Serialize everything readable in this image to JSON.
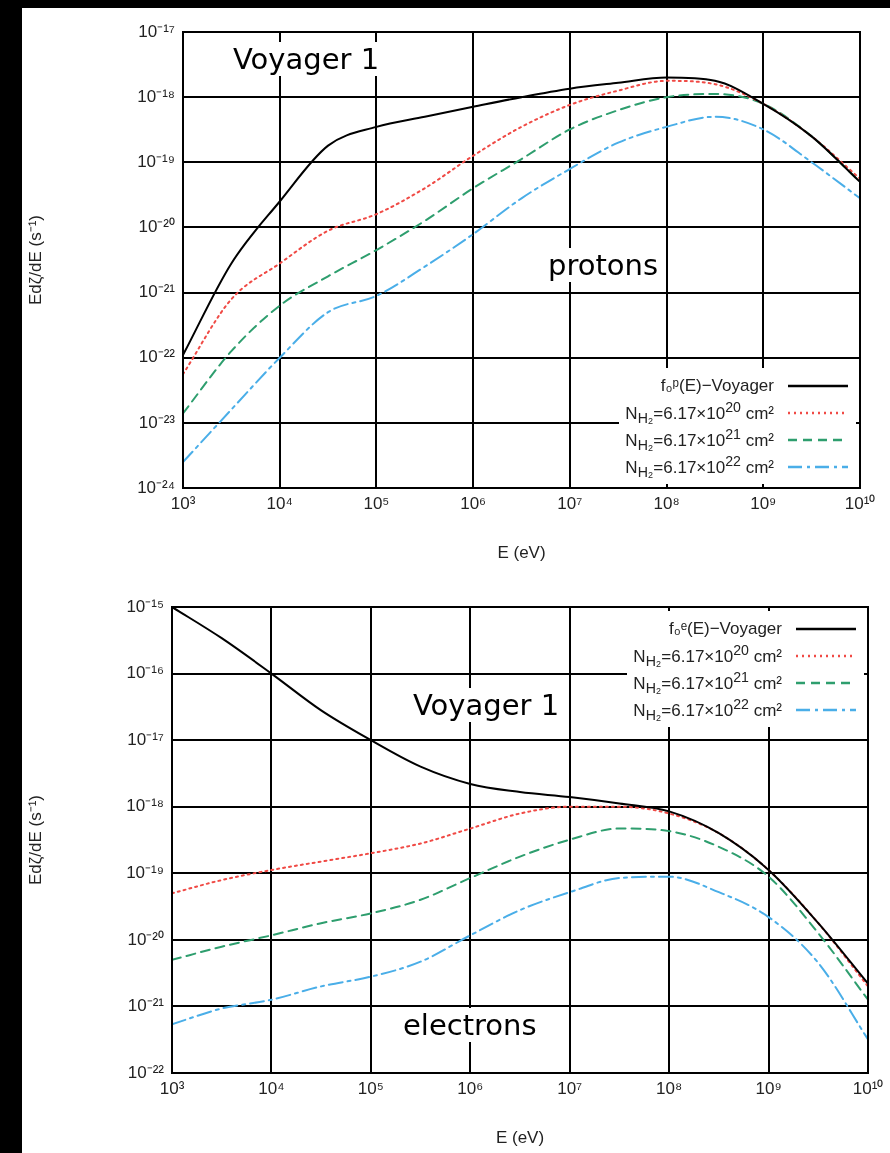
{
  "chart_data": [
    {
      "type": "line",
      "xlabel": "E (eV)",
      "ylabel": "Edζ/dE (s⁻¹)",
      "log": "xy",
      "grid": true,
      "legend": "bottom right",
      "marker": "none",
      "x": [
        1000,
        3162,
        10000,
        31623,
        100000,
        316228,
        1000000,
        3162278,
        10000000,
        31622777,
        100000000,
        316227766,
        1000000000,
        3162277660,
        10000000000
      ],
      "xlim": [
        1000,
        10000000000
      ],
      "xticks": [
        {
          "value": 1000,
          "label": "10³"
        },
        {
          "value": 10000,
          "label": "10⁴"
        },
        {
          "value": 100000,
          "label": "10⁵"
        },
        {
          "value": 1000000,
          "label": "10⁶"
        },
        {
          "value": 10000000,
          "label": "10⁷"
        },
        {
          "value": 100000000,
          "label": "10⁸"
        },
        {
          "value": 1000000000,
          "label": "10⁹"
        },
        {
          "value": 10000000000,
          "label": "10¹⁰"
        }
      ],
      "ylim": [
        1e-24,
        1e-17
      ],
      "yticks": [
        {
          "value": 1e-24,
          "label": "10⁻²⁴"
        },
        {
          "value": 1e-23,
          "label": "10⁻²³"
        },
        {
          "value": 1e-22,
          "label": "10⁻²²"
        },
        {
          "value": 1e-21,
          "label": "10⁻²¹"
        },
        {
          "value": 1e-20,
          "label": "10⁻²⁰"
        },
        {
          "value": 1e-19,
          "label": "10⁻¹⁹"
        },
        {
          "value": 1e-18,
          "label": "10⁻¹⁸"
        },
        {
          "value": 1e-17,
          "label": "10⁻¹⁷"
        }
      ],
      "annotations": [
        "Voyager 1",
        "protons"
      ],
      "series": [
        {
          "name": "f₀ᵖ(E)−Voyager",
          "color": "#000000",
          "line_style": "solid",
          "values": [
            1.1e-22,
            2.8e-21,
            2.5e-20,
            1.8e-19,
            3.5e-19,
            5e-19,
            7.1e-19,
            1e-18,
            1.35e-18,
            1.66e-18,
            2e-18,
            1.78e-18,
            7.9e-19,
            2.5e-19,
            5e-20
          ]
        },
        {
          "name": "N$_{H₂}$=6.17×10$^{20}$ cm²",
          "color": "#f04a45",
          "line_style": "dotted",
          "values": [
            5.6e-23,
            7.9e-22,
            2.8e-21,
            8.9e-21,
            1.6e-20,
            4e-20,
            1.26e-19,
            3.5e-19,
            7.6e-19,
            1.26e-18,
            1.78e-18,
            1.58e-18,
            7.9e-19,
            2.5e-19,
            5.6e-20
          ]
        },
        {
          "name": "N$_{H₂}$=6.17×10$^{21}$ cm²",
          "color": "#2e9e6e",
          "line_style": "dashed",
          "values": [
            1.4e-23,
            1.26e-22,
            6.3e-22,
            1.78e-21,
            4.5e-21,
            1.26e-20,
            4e-20,
            1.12e-19,
            3.2e-19,
            6.3e-19,
            1e-18,
            1.12e-18,
            7.9e-19,
            2.5e-19,
            5e-20
          ]
        },
        {
          "name": "N$_{H₂}$=6.17×10$^{22}$ cm²",
          "color": "#4aaee8",
          "line_style": "dashdot",
          "values": [
            2.5e-24,
            1.6e-23,
            1e-22,
            5e-22,
            8.9e-22,
            2.5e-21,
            7.9e-21,
            2.8e-20,
            7.9e-20,
            2e-19,
            3.5e-19,
            5e-19,
            3.2e-19,
            1e-19,
            2.8e-20
          ]
        }
      ]
    },
    {
      "type": "line",
      "xlabel": "E (eV)",
      "ylabel": "Edζ/dE (s⁻¹)",
      "log": "xy",
      "grid": true,
      "legend": "top right",
      "marker": "none",
      "x": [
        1000,
        3162,
        10000,
        31623,
        100000,
        316228,
        1000000,
        3162278,
        10000000,
        31622777,
        100000000,
        316227766,
        1000000000,
        3162277660,
        10000000000
      ],
      "xlim": [
        1000,
        10000000000
      ],
      "xticks": [
        {
          "value": 1000,
          "label": "10³"
        },
        {
          "value": 10000,
          "label": "10⁴"
        },
        {
          "value": 100000,
          "label": "10⁵"
        },
        {
          "value": 1000000,
          "label": "10⁶"
        },
        {
          "value": 10000000,
          "label": "10⁷"
        },
        {
          "value": 100000000,
          "label": "10⁸"
        },
        {
          "value": 1000000000,
          "label": "10⁹"
        },
        {
          "value": 10000000000,
          "label": "10¹⁰"
        }
      ],
      "ylim": [
        1e-22,
        1e-15
      ],
      "yticks": [
        {
          "value": 1e-22,
          "label": "10⁻²²"
        },
        {
          "value": 1e-21,
          "label": "10⁻²¹"
        },
        {
          "value": 1e-20,
          "label": "10⁻²⁰"
        },
        {
          "value": 1e-19,
          "label": "10⁻¹⁹"
        },
        {
          "value": 1e-18,
          "label": "10⁻¹⁸"
        },
        {
          "value": 1e-17,
          "label": "10⁻¹⁷"
        },
        {
          "value": 1e-16,
          "label": "10⁻¹⁶"
        },
        {
          "value": 1e-15,
          "label": "10⁻¹⁵"
        }
      ],
      "annotations": [
        "Voyager 1",
        "electrons"
      ],
      "series": [
        {
          "name": "f₀ᵉ(E)−Voyager",
          "color": "#000000",
          "line_style": "solid",
          "values": [
            1e-15,
            3.4e-16,
            1e-16,
            2.8e-17,
            1e-17,
            4e-18,
            2.2e-18,
            1.66e-18,
            1.4e-18,
            1.12e-18,
            8.5e-19,
            4e-19,
            1.12e-19,
            1.78e-20,
            2.2e-21
          ]
        },
        {
          "name": "N$_{H₂}$=6.17×10$^{20}$ cm²",
          "color": "#f04a45",
          "line_style": "dotted",
          "values": [
            5e-20,
            7.9e-20,
            1.12e-19,
            1.5e-19,
            2e-19,
            2.8e-19,
            4.7e-19,
            7.9e-19,
            1e-18,
            1e-18,
            7.9e-19,
            4e-19,
            1.12e-19,
            1.78e-20,
            2e-21
          ]
        },
        {
          "name": "N$_{H₂}$=6.17×10$^{21}$ cm²",
          "color": "#2e9e6e",
          "line_style": "dashed",
          "values": [
            5e-21,
            7.9e-21,
            1.17e-20,
            1.78e-20,
            2.5e-20,
            4e-20,
            8.5e-20,
            1.78e-19,
            3.2e-19,
            4.7e-19,
            4.3e-19,
            2.5e-19,
            8.9e-20,
            1.26e-20,
            1.26e-21
          ]
        },
        {
          "name": "N$_{H₂}$=6.17×10$^{22}$ cm²",
          "color": "#4aaee8",
          "line_style": "dashdot",
          "values": [
            5.4e-22,
            9.3e-22,
            1.26e-21,
            2e-21,
            2.8e-21,
            4.7e-21,
            1.17e-20,
            2.8e-20,
            5.2e-20,
            8.5e-20,
            8.9e-20,
            5.2e-20,
            2.2e-20,
            4.5e-21,
            3.2e-22
          ]
        }
      ]
    }
  ]
}
